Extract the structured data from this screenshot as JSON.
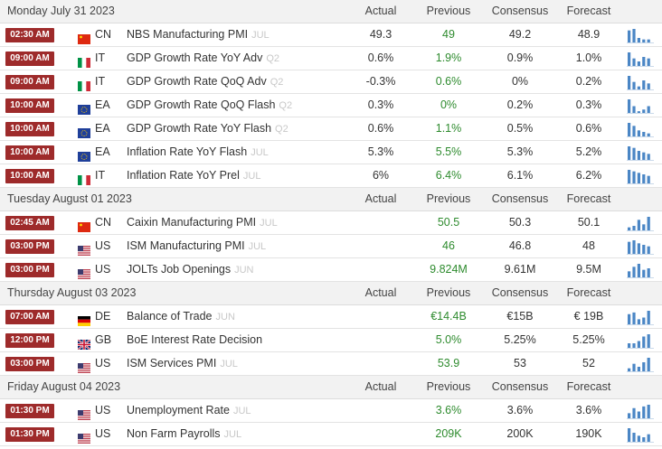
{
  "columns": {
    "actual": "Actual",
    "previous": "Previous",
    "consensus": "Consensus",
    "forecast": "Forecast"
  },
  "groups": [
    {
      "date": "Monday July 31 2023",
      "events": [
        {
          "time": "02:30 AM",
          "flag": "cn-flag-icon",
          "country": "CN",
          "event": "NBS Manufacturing PMI",
          "ref": "JUL",
          "actual": "49.3",
          "previous": "49",
          "consensus": "49.2",
          "forecast": "48.9",
          "spark": [
            8,
            9,
            3,
            2,
            2
          ]
        },
        {
          "time": "09:00 AM",
          "flag": "it-flag-icon",
          "country": "IT",
          "event": "GDP Growth Rate YoY Adv",
          "ref": "Q2",
          "actual": "0.6%",
          "previous": "1.9%",
          "consensus": "0.9%",
          "forecast": "1.0%",
          "spark": [
            9,
            5,
            3,
            6,
            5
          ]
        },
        {
          "time": "09:00 AM",
          "flag": "it-flag-icon",
          "country": "IT",
          "event": "GDP Growth Rate QoQ Adv",
          "ref": "Q2",
          "actual": "-0.3%",
          "previous": "0.6%",
          "consensus": "0%",
          "forecast": "0.2%",
          "spark": [
            9,
            5,
            2,
            6,
            4
          ]
        },
        {
          "time": "10:00 AM",
          "flag": "ea-flag-icon",
          "country": "EA",
          "event": "GDP Growth Rate QoQ Flash",
          "ref": "Q2",
          "actual": "0.3%",
          "previous": "0%",
          "consensus": "0.2%",
          "forecast": "0.3%",
          "spark": [
            8,
            4,
            1,
            2,
            4
          ]
        },
        {
          "time": "10:00 AM",
          "flag": "ea-flag-icon",
          "country": "EA",
          "event": "GDP Growth Rate YoY Flash",
          "ref": "Q2",
          "actual": "0.6%",
          "previous": "1.1%",
          "consensus": "0.5%",
          "forecast": "0.6%",
          "spark": [
            9,
            7,
            4,
            3,
            2
          ]
        },
        {
          "time": "10:00 AM",
          "flag": "ea-flag-icon",
          "country": "EA",
          "event": "Inflation Rate YoY Flash",
          "ref": "JUL",
          "actual": "5.3%",
          "previous": "5.5%",
          "consensus": "5.3%",
          "forecast": "5.2%",
          "spark": [
            9,
            8,
            6,
            5,
            4
          ]
        },
        {
          "time": "10:00 AM",
          "flag": "it-flag-icon",
          "country": "IT",
          "event": "Inflation Rate YoY Prel",
          "ref": "JUL",
          "actual": "6%",
          "previous": "6.4%",
          "consensus": "6.1%",
          "forecast": "6.2%",
          "spark": [
            9,
            8,
            7,
            6,
            5
          ]
        }
      ]
    },
    {
      "date": "Tuesday August 01 2023",
      "events": [
        {
          "time": "02:45 AM",
          "flag": "cn-flag-icon",
          "country": "CN",
          "event": "Caixin Manufacturing PMI",
          "ref": "JUL",
          "actual": "",
          "previous": "50.5",
          "consensus": "50.3",
          "forecast": "50.1",
          "spark": [
            2,
            3,
            7,
            4,
            9
          ]
        },
        {
          "time": "03:00 PM",
          "flag": "us-flag-icon",
          "country": "US",
          "event": "ISM Manufacturing PMI",
          "ref": "JUL",
          "actual": "",
          "previous": "46",
          "consensus": "46.8",
          "forecast": "48",
          "spark": [
            8,
            9,
            7,
            6,
            5
          ]
        },
        {
          "time": "03:00 PM",
          "flag": "us-flag-icon",
          "country": "US",
          "event": "JOLTs Job Openings",
          "ref": "JUN",
          "actual": "",
          "previous": "9.824M",
          "consensus": "9.61M",
          "forecast": "9.5M",
          "spark": [
            4,
            7,
            9,
            5,
            6
          ]
        }
      ]
    },
    {
      "date": "Thursday August 03 2023",
      "events": [
        {
          "time": "07:00 AM",
          "flag": "de-flag-icon",
          "country": "DE",
          "event": "Balance of Trade",
          "ref": "JUN",
          "actual": "",
          "previous": "€14.4B",
          "consensus": "€15B",
          "forecast": "€ 19B",
          "spark": [
            6,
            7,
            3,
            4,
            8
          ]
        },
        {
          "time": "12:00 PM",
          "flag": "gb-flag-icon",
          "country": "GB",
          "event": "BoE Interest Rate Decision",
          "ref": "",
          "actual": "",
          "previous": "5.0%",
          "consensus": "5.25%",
          "forecast": "5.25%",
          "spark": [
            2,
            2,
            3,
            5,
            6
          ]
        },
        {
          "time": "03:00 PM",
          "flag": "us-flag-icon",
          "country": "US",
          "event": "ISM Services PMI",
          "ref": "JUL",
          "actual": "",
          "previous": "53.9",
          "consensus": "53",
          "forecast": "52",
          "spark": [
            2,
            5,
            3,
            6,
            9
          ]
        }
      ]
    },
    {
      "date": "Friday August 04 2023",
      "events": [
        {
          "time": "01:30 PM",
          "flag": "us-flag-icon",
          "country": "US",
          "event": "Unemployment Rate",
          "ref": "JUL",
          "actual": "",
          "previous": "3.6%",
          "consensus": "3.6%",
          "forecast": "3.6%",
          "spark": [
            3,
            6,
            4,
            7,
            8
          ]
        },
        {
          "time": "01:30 PM",
          "flag": "us-flag-icon",
          "country": "US",
          "event": "Non Farm Payrolls",
          "ref": "JUL",
          "actual": "",
          "previous": "209K",
          "consensus": "200K",
          "forecast": "190K",
          "spark": [
            9,
            6,
            4,
            3,
            5
          ]
        }
      ]
    }
  ],
  "colors": {
    "time_badge": "#9e2b2b",
    "previous_text": "#2e8b2e",
    "spark_bar": "#4a86c5",
    "header_bg": "#f2f2f2"
  }
}
